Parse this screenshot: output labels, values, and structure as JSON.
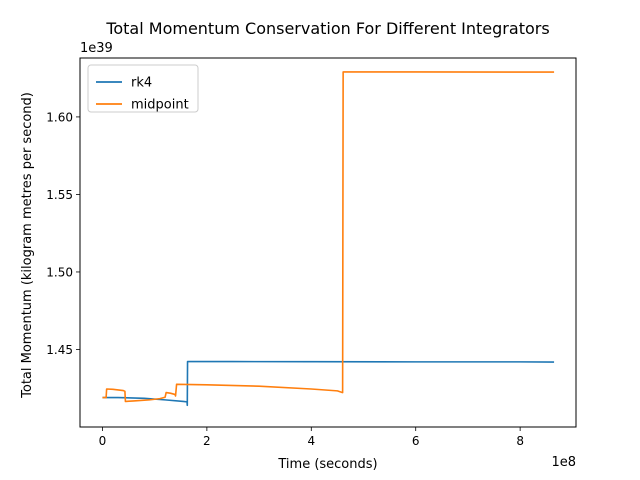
{
  "chart_data": {
    "type": "line",
    "title": "Total Momentum Conservation For Different Integrators",
    "xlabel": "Time (seconds)",
    "ylabel": "Total Momentum (kilogram metres per second)",
    "x_offset_text": "1e8",
    "y_offset_text": "1e39",
    "x_multiplier": 100000000,
    "y_multiplier": 1e+39,
    "xlim": [
      -0.43,
      9.07
    ],
    "ylim": [
      1.4,
      1.638
    ],
    "xticks": [
      0,
      2,
      4,
      6,
      8
    ],
    "xtick_labels": [
      "0",
      "2",
      "4",
      "6",
      "8"
    ],
    "yticks": [
      1.45,
      1.5,
      1.55,
      1.6
    ],
    "ytick_labels": [
      "1.45",
      "1.50",
      "1.55",
      "1.60"
    ],
    "grid": false,
    "legend_position": "top-left",
    "series": [
      {
        "name": "rk4",
        "color": "#1f77b4",
        "points": [
          [
            0.0,
            1.419
          ],
          [
            0.3,
            1.419
          ],
          [
            0.8,
            1.4185
          ],
          [
            1.2,
            1.4175
          ],
          [
            1.55,
            1.4165
          ],
          [
            1.62,
            1.4162
          ],
          [
            1.625,
            1.414
          ],
          [
            1.63,
            1.4422
          ],
          [
            2.5,
            1.4422
          ],
          [
            4.0,
            1.4421
          ],
          [
            6.0,
            1.442
          ],
          [
            8.0,
            1.442
          ],
          [
            8.65,
            1.4419
          ]
        ]
      },
      {
        "name": "midpoint",
        "color": "#ff7f0e",
        "points": [
          [
            0.0,
            1.419
          ],
          [
            0.07,
            1.419
          ],
          [
            0.08,
            1.4245
          ],
          [
            0.2,
            1.4243
          ],
          [
            0.4,
            1.4235
          ],
          [
            0.43,
            1.423
          ],
          [
            0.44,
            1.4165
          ],
          [
            0.6,
            1.4168
          ],
          [
            0.9,
            1.4175
          ],
          [
            1.1,
            1.4183
          ],
          [
            1.2,
            1.4192
          ],
          [
            1.22,
            1.4222
          ],
          [
            1.3,
            1.4218
          ],
          [
            1.39,
            1.421
          ],
          [
            1.4,
            1.42
          ],
          [
            1.42,
            1.4275
          ],
          [
            2.0,
            1.4272
          ],
          [
            3.0,
            1.4263
          ],
          [
            4.0,
            1.4245
          ],
          [
            4.5,
            1.4233
          ],
          [
            4.6,
            1.4222
          ],
          [
            4.61,
            1.629
          ],
          [
            6.0,
            1.629
          ],
          [
            8.0,
            1.6289
          ],
          [
            8.65,
            1.6289
          ]
        ]
      }
    ]
  }
}
